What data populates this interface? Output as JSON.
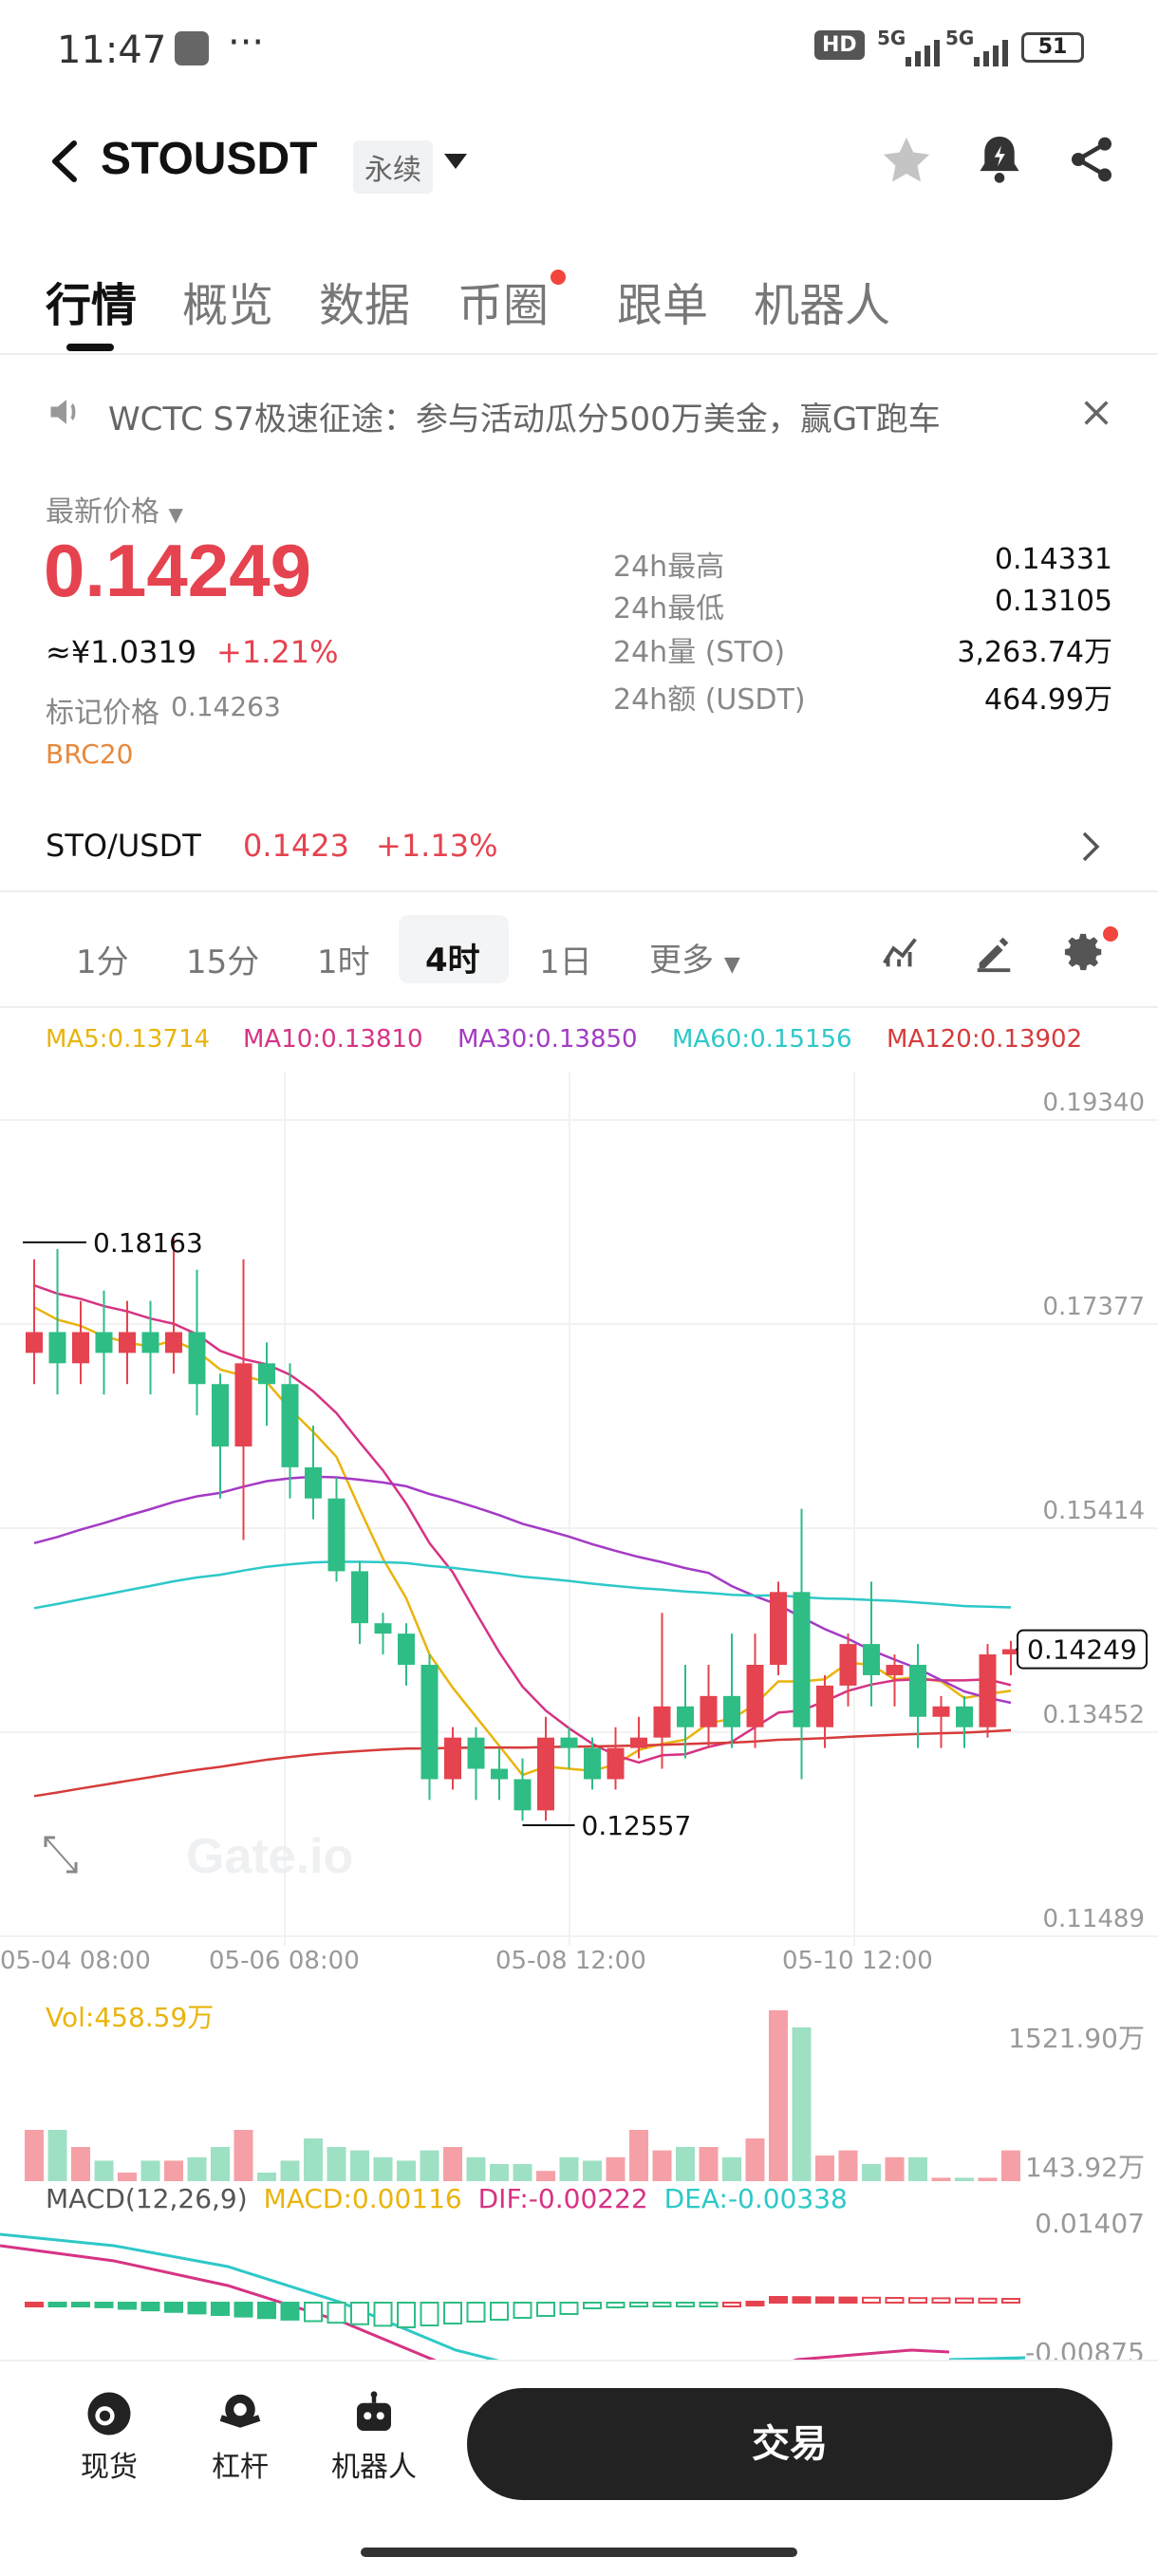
{
  "status_bar": {
    "time": "11:47",
    "more": "···",
    "network_hd": "HD",
    "network_5g_1": "5G",
    "network_5g_2": "5G",
    "battery": "51"
  },
  "header": {
    "symbol": "STOUSDT",
    "badge": "永续"
  },
  "tabs": [
    {
      "label": "行情",
      "active": true
    },
    {
      "label": "概览"
    },
    {
      "label": "数据"
    },
    {
      "label": "币圈",
      "dot": true
    },
    {
      "label": "跟单"
    },
    {
      "label": "机器人"
    }
  ],
  "notice": {
    "text": "WCTC S7极速征途：参与活动瓜分500万美金，赢GT跑车"
  },
  "price": {
    "label": "最新价格",
    "last": "0.14249",
    "cny": "≈¥1.0319",
    "change": "+1.21%",
    "mark_label": "标记价格",
    "mark_value": "0.14263",
    "tag": "BRC20",
    "stats": [
      {
        "label": "24h最高",
        "value": "0.14331"
      },
      {
        "label": "24h最低",
        "value": "0.13105"
      },
      {
        "label": "24h量 (STO)",
        "value": "3,263.74万"
      },
      {
        "label": "24h额 (USDT)",
        "value": "464.99万"
      }
    ]
  },
  "spot": {
    "pair": "STO/USDT",
    "price": "0.1423",
    "change": "+1.13%"
  },
  "timeframes": [
    {
      "label": "1分"
    },
    {
      "label": "15分"
    },
    {
      "label": "1时"
    },
    {
      "label": "4时",
      "active": true
    },
    {
      "label": "1日"
    },
    {
      "label": "更多"
    }
  ],
  "ma_legend": [
    {
      "text": "MA5:0.13714",
      "color": "#e9b40c"
    },
    {
      "text": "MA10:0.13810",
      "color": "#d63384"
    },
    {
      "text": "MA30:0.13850",
      "color": "#a43ac4"
    },
    {
      "text": "MA60:0.15156",
      "color": "#2ec8c8"
    },
    {
      "text": "MA120:0.13902",
      "color": "#d63b3b"
    }
  ],
  "chart_data": {
    "type": "candlestick",
    "y_ticks": [
      "0.19340",
      "0.17377",
      "0.15414",
      "0.13452",
      "0.11489"
    ],
    "x_ticks": [
      "05-04 08:00",
      "05-06 08:00",
      "05-08 12:00",
      "05-10 12:00"
    ],
    "ylim": [
      0.11489,
      0.1934
    ],
    "high_label": "0.18163",
    "low_label": "0.12557",
    "last_price_label": "0.14249",
    "watermark": "Gate.io",
    "candles": [
      [
        0.171,
        0.173,
        0.168,
        0.18
      ],
      [
        0.173,
        0.17,
        0.167,
        0.181
      ],
      [
        0.17,
        0.173,
        0.168,
        0.176
      ],
      [
        0.173,
        0.171,
        0.167,
        0.177
      ],
      [
        0.171,
        0.173,
        0.168,
        0.176
      ],
      [
        0.173,
        0.171,
        0.167,
        0.176
      ],
      [
        0.171,
        0.173,
        0.169,
        0.182
      ],
      [
        0.173,
        0.168,
        0.165,
        0.179
      ],
      [
        0.168,
        0.162,
        0.157,
        0.169
      ],
      [
        0.162,
        0.17,
        0.153,
        0.18
      ],
      [
        0.17,
        0.168,
        0.164,
        0.172
      ],
      [
        0.168,
        0.16,
        0.157,
        0.17
      ],
      [
        0.16,
        0.157,
        0.155,
        0.164
      ],
      [
        0.157,
        0.15,
        0.149,
        0.159
      ],
      [
        0.15,
        0.145,
        0.143,
        0.151
      ],
      [
        0.145,
        0.144,
        0.142,
        0.146
      ],
      [
        0.144,
        0.141,
        0.139,
        0.145
      ],
      [
        0.141,
        0.13,
        0.128,
        0.142
      ],
      [
        0.13,
        0.134,
        0.129,
        0.135
      ],
      [
        0.134,
        0.131,
        0.128,
        0.135
      ],
      [
        0.131,
        0.13,
        0.128,
        0.133
      ],
      [
        0.13,
        0.127,
        0.126,
        0.132
      ],
      [
        0.127,
        0.134,
        0.126,
        0.136
      ],
      [
        0.134,
        0.133,
        0.131,
        0.135
      ],
      [
        0.133,
        0.13,
        0.129,
        0.134
      ],
      [
        0.13,
        0.133,
        0.129,
        0.135
      ],
      [
        0.133,
        0.134,
        0.132,
        0.136
      ],
      [
        0.134,
        0.137,
        0.131,
        0.146
      ],
      [
        0.137,
        0.135,
        0.132,
        0.141
      ],
      [
        0.135,
        0.138,
        0.133,
        0.141
      ],
      [
        0.138,
        0.135,
        0.133,
        0.144
      ],
      [
        0.135,
        0.141,
        0.133,
        0.144
      ],
      [
        0.141,
        0.148,
        0.14,
        0.149
      ],
      [
        0.148,
        0.135,
        0.13,
        0.156
      ],
      [
        0.135,
        0.139,
        0.133,
        0.14
      ],
      [
        0.139,
        0.143,
        0.137,
        0.144
      ],
      [
        0.143,
        0.14,
        0.137,
        0.149
      ],
      [
        0.14,
        0.141,
        0.137,
        0.142
      ],
      [
        0.141,
        0.136,
        0.133,
        0.143
      ],
      [
        0.136,
        0.137,
        0.133,
        0.138
      ],
      [
        0.137,
        0.135,
        0.133,
        0.138
      ],
      [
        0.135,
        0.142,
        0.134,
        0.143
      ],
      [
        0.142,
        0.1425,
        0.14,
        0.1433
      ]
    ],
    "volume": {
      "label": "Vol:458.59万",
      "ticks": [
        "1521.90万",
        "143.92万"
      ]
    },
    "macd": {
      "label": "MACD(12,26,9)",
      "macd": "MACD:0.00116",
      "dif": "DIF:-0.00222",
      "dea": "DEA:-0.00338",
      "ticks": [
        "0.01407",
        "-0.00875"
      ]
    }
  },
  "colors": {
    "up": "#e5434f",
    "down": "#2ebd85"
  },
  "bottom_nav": [
    {
      "label": "现货",
      "icon": "spot-icon"
    },
    {
      "label": "杠杆",
      "icon": "margin-icon"
    },
    {
      "label": "机器人",
      "icon": "robot-icon"
    }
  ],
  "trade_button": "交易"
}
